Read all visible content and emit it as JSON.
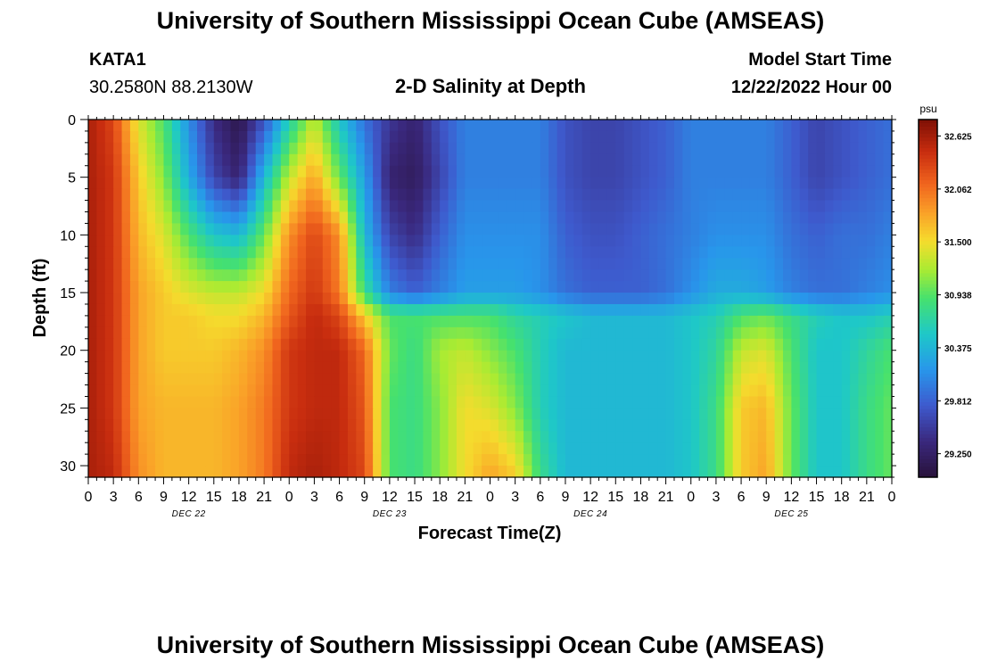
{
  "header": {
    "title": "University of Southern Mississippi Ocean Cube (AMSEAS)",
    "station_id": "KATA1",
    "station_coords": "30.2580N  88.2130W",
    "start_label": "Model Start Time",
    "start_value": "12/22/2022 Hour 00",
    "footer_title": "University of Southern Mississippi Ocean Cube (AMSEAS)"
  },
  "chart_data": {
    "type": "heatmap",
    "title": "2-D Salinity at Depth",
    "xlabel": "Forecast Time(Z)",
    "ylabel": "Depth (ft)",
    "ylim": [
      0,
      31
    ],
    "y_ticks": [
      0,
      5,
      10,
      15,
      20,
      25,
      30
    ],
    "x_range_hours": [
      0,
      96
    ],
    "x_tick_labels": [
      "0",
      "3",
      "6",
      "9",
      "12",
      "15",
      "18",
      "21",
      "0",
      "3",
      "6",
      "9",
      "12",
      "15",
      "18",
      "21",
      "0",
      "3",
      "6",
      "9",
      "12",
      "15",
      "18",
      "21",
      "0",
      "3",
      "6",
      "9",
      "12",
      "15",
      "18",
      "21",
      "0"
    ],
    "day_labels": [
      {
        "label": "DEC 22",
        "hour": 12
      },
      {
        "label": "DEC 23",
        "hour": 36
      },
      {
        "label": "DEC 24",
        "hour": 60
      },
      {
        "label": "DEC 25",
        "hour": 84
      }
    ],
    "colorbar": {
      "unit": "psu",
      "min": 29.0,
      "max": 32.8,
      "tick_values": [
        32.625,
        32.062,
        31.5,
        30.938,
        30.375,
        29.812,
        29.25
      ],
      "tick_labels": [
        "32.625",
        "32.062",
        "31.500",
        "30.938",
        "30.375",
        "29.812",
        "29.250"
      ]
    },
    "grid_hours": [
      0,
      3,
      6,
      9,
      12,
      15,
      18,
      21,
      24,
      27,
      30,
      33,
      36,
      39,
      42,
      45,
      48,
      51,
      54,
      57,
      60,
      63,
      66,
      69,
      72,
      75,
      78,
      81,
      84,
      87,
      90,
      93,
      96
    ],
    "grid_depths_ft": [
      0,
      5,
      10,
      15,
      17,
      20,
      25,
      31
    ],
    "salinity_psu": [
      [
        32.6,
        32.3,
        31.4,
        30.9,
        30.1,
        29.4,
        29.1,
        29.7,
        30.6,
        31.3,
        30.5,
        29.9,
        29.5,
        29.3,
        29.7,
        30.0,
        30.0,
        30.0,
        30.0,
        29.7,
        29.6,
        29.6,
        29.7,
        29.8,
        30.0,
        30.0,
        30.0,
        30.0,
        29.8,
        29.6,
        29.7,
        29.8,
        29.9
      ],
      [
        32.6,
        32.4,
        31.6,
        31.1,
        30.3,
        29.6,
        29.3,
        30.4,
        31.3,
        31.8,
        31.0,
        30.2,
        29.3,
        29.2,
        29.6,
        30.0,
        30.0,
        30.0,
        30.0,
        29.7,
        29.6,
        29.6,
        29.7,
        29.8,
        30.0,
        30.0,
        30.0,
        30.0,
        29.8,
        29.6,
        29.7,
        29.8,
        29.9
      ],
      [
        32.6,
        32.4,
        31.7,
        31.4,
        30.9,
        30.5,
        30.4,
        31.0,
        31.9,
        32.3,
        31.9,
        30.4,
        29.6,
        29.4,
        29.8,
        30.1,
        30.1,
        30.1,
        30.1,
        29.8,
        29.7,
        29.7,
        29.8,
        29.9,
        30.0,
        30.1,
        30.1,
        30.1,
        29.9,
        29.8,
        29.9,
        29.9,
        30.0
      ],
      [
        32.6,
        32.4,
        31.8,
        31.6,
        31.4,
        31.3,
        31.3,
        31.5,
        32.1,
        32.4,
        32.0,
        30.8,
        30.0,
        29.8,
        30.0,
        30.2,
        30.2,
        30.2,
        30.1,
        29.9,
        29.8,
        29.8,
        29.8,
        29.9,
        30.1,
        30.3,
        30.3,
        30.2,
        30.0,
        29.9,
        29.9,
        30.0,
        30.1
      ],
      [
        32.6,
        32.4,
        31.8,
        31.6,
        31.6,
        31.5,
        31.5,
        31.7,
        32.2,
        32.5,
        32.3,
        31.6,
        30.9,
        30.9,
        30.9,
        30.9,
        30.9,
        30.7,
        30.6,
        30.5,
        30.4,
        30.4,
        30.4,
        30.4,
        30.5,
        30.6,
        30.9,
        31.0,
        30.8,
        30.6,
        30.5,
        30.5,
        30.6
      ],
      [
        32.6,
        32.4,
        31.8,
        31.6,
        31.6,
        31.6,
        31.7,
        31.9,
        32.4,
        32.5,
        32.5,
        32.1,
        31.0,
        30.8,
        31.2,
        31.3,
        31.1,
        30.9,
        30.6,
        30.4,
        30.4,
        30.4,
        30.4,
        30.4,
        30.5,
        30.7,
        31.3,
        31.4,
        30.9,
        30.5,
        30.5,
        30.7,
        30.9
      ],
      [
        32.6,
        32.4,
        31.8,
        31.7,
        31.7,
        31.7,
        31.8,
        32.0,
        32.4,
        32.5,
        32.5,
        32.2,
        30.9,
        30.8,
        31.1,
        31.5,
        31.4,
        31.1,
        30.6,
        30.4,
        30.4,
        30.4,
        30.4,
        30.4,
        30.5,
        30.8,
        31.6,
        31.7,
        31.0,
        30.5,
        30.5,
        30.8,
        31.0
      ],
      [
        32.6,
        32.5,
        31.9,
        31.7,
        31.7,
        31.7,
        31.8,
        32.0,
        32.5,
        32.6,
        32.5,
        32.3,
        30.9,
        30.8,
        31.1,
        31.5,
        31.8,
        31.6,
        30.8,
        30.4,
        30.4,
        30.4,
        30.4,
        30.4,
        30.5,
        30.8,
        31.6,
        31.8,
        31.0,
        30.5,
        30.5,
        30.8,
        31.0
      ]
    ]
  }
}
